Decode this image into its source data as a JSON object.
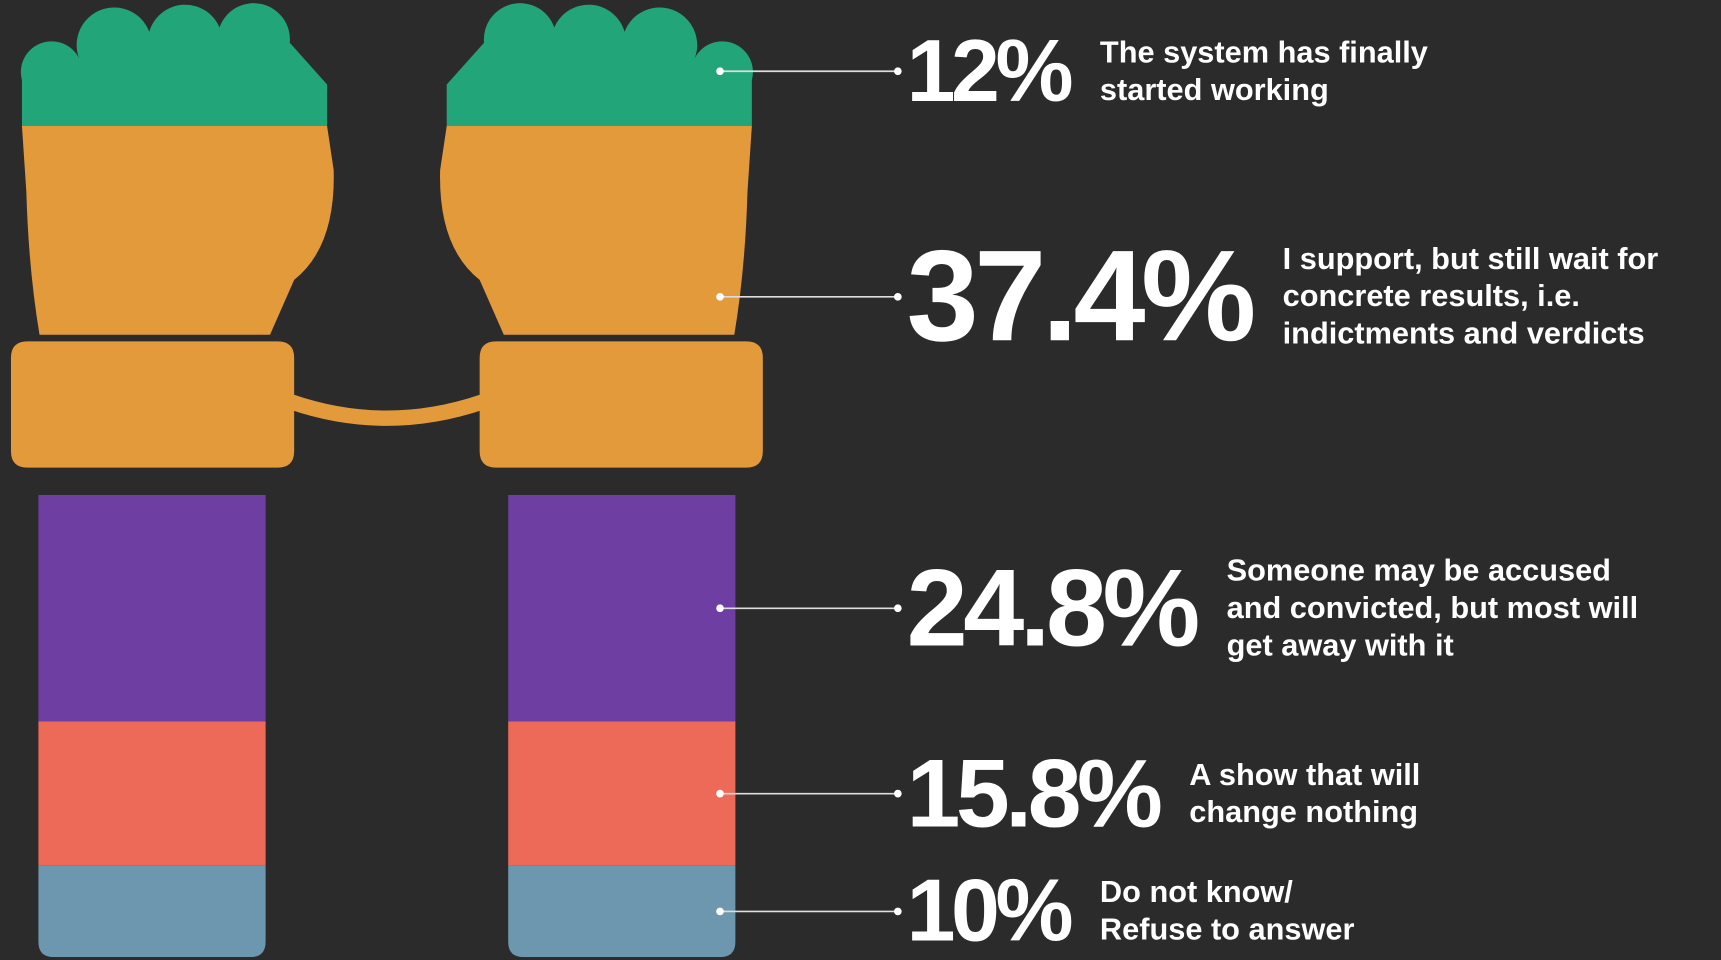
{
  "chart_data": {
    "type": "handcuffs",
    "categories": [
      "The system has finally started working",
      "I support, but still wait for concrete results, i.e. indictments and verdicts",
      "Someone may be accused and convicted, but most will get away with it",
      "A show that will change nothing",
      "Do not know/ Refuse to answer"
    ],
    "values": [
      12,
      37.4,
      24.8,
      15.8,
      10
    ],
    "value_labels": [
      "12%",
      "37.4%",
      "24.8%",
      "15.8%",
      "10%"
    ],
    "colors": [
      "#23a57a",
      "#e39a3b",
      "#6f3ea3",
      "#ee6a58",
      "#6c97ae"
    ]
  }
}
